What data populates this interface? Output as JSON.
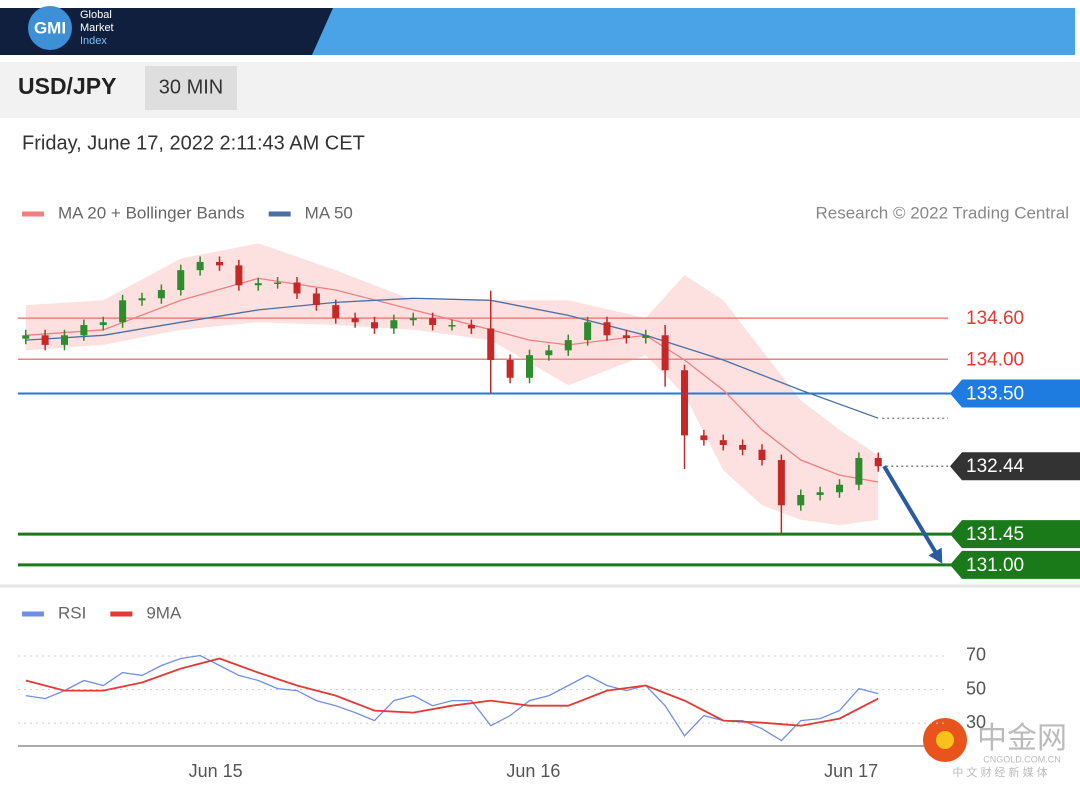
{
  "header": {
    "logo": "GMI",
    "brand_lines": [
      "Global",
      "Market",
      "Index"
    ],
    "symbol": "USD/JPY",
    "interval": "30 MIN",
    "timestamp": "Friday, June 17, 2022 2:11:43 AM CET",
    "credit": "Research © 2022 Trading Central"
  },
  "watermark": {
    "logo": "中金网",
    "url": "CNGOLD.COM.CN",
    "tagline": "中 文 财 经 新 媒 体"
  },
  "chart_data": [
    {
      "type": "candlestick",
      "x": [
        0,
        1,
        2,
        3,
        4,
        5,
        6,
        7,
        8,
        9,
        10,
        11,
        12,
        13,
        14,
        15,
        16,
        17,
        18,
        19,
        20,
        21,
        22,
        23,
        24,
        25,
        26,
        27,
        28,
        29,
        30,
        31,
        32,
        33,
        34,
        35,
        36,
        37,
        38,
        39,
        40,
        41,
        42,
        43,
        44
      ],
      "open": [
        134.3,
        134.35,
        134.21,
        134.35,
        134.5,
        134.54,
        134.86,
        134.89,
        135.01,
        135.3,
        135.42,
        135.37,
        135.08,
        135.11,
        135.12,
        134.96,
        134.79,
        134.6,
        134.54,
        134.45,
        134.57,
        134.6,
        134.5,
        134.5,
        134.45,
        133.99,
        133.73,
        134.06,
        134.13,
        134.28,
        134.54,
        134.35,
        134.31,
        134.35,
        133.84,
        132.89,
        132.82,
        132.75,
        132.68,
        132.53,
        131.87,
        132.02,
        132.06,
        132.17,
        132.56
      ],
      "high": [
        134.43,
        134.43,
        134.43,
        134.58,
        134.62,
        134.94,
        134.97,
        135.09,
        135.38,
        135.5,
        135.5,
        135.45,
        135.19,
        135.2,
        135.2,
        135.04,
        134.87,
        134.68,
        134.62,
        134.65,
        134.68,
        134.68,
        134.58,
        134.58,
        135.0,
        134.07,
        134.14,
        134.21,
        134.36,
        134.62,
        134.62,
        134.43,
        134.43,
        134.5,
        133.92,
        132.97,
        132.9,
        132.83,
        132.76,
        132.61,
        132.1,
        132.14,
        132.25,
        132.64,
        132.64
      ],
      "low": [
        134.22,
        134.13,
        134.13,
        134.27,
        134.42,
        134.46,
        134.78,
        134.81,
        134.93,
        135.22,
        135.29,
        135.0,
        135.0,
        135.03,
        134.88,
        134.71,
        134.52,
        134.46,
        134.37,
        134.37,
        134.49,
        134.42,
        134.42,
        134.37,
        133.5,
        133.65,
        133.65,
        133.98,
        134.05,
        134.2,
        134.27,
        134.23,
        134.23,
        133.6,
        132.4,
        132.74,
        132.67,
        132.6,
        132.45,
        131.45,
        131.79,
        131.94,
        131.98,
        132.09,
        132.36
      ],
      "close": [
        134.35,
        134.21,
        134.35,
        134.5,
        134.54,
        134.86,
        134.89,
        135.01,
        135.3,
        135.42,
        135.37,
        135.08,
        135.11,
        135.12,
        134.96,
        134.79,
        134.6,
        134.54,
        134.45,
        134.57,
        134.6,
        134.5,
        134.5,
        134.45,
        133.99,
        133.73,
        134.06,
        134.13,
        134.28,
        134.54,
        134.35,
        134.31,
        134.35,
        133.84,
        132.89,
        132.82,
        132.75,
        132.68,
        132.53,
        131.87,
        132.02,
        132.06,
        132.17,
        132.56,
        132.44
      ],
      "up_color": "#2e8b2e",
      "down_color": "#c62828",
      "xlim": [
        -0.4,
        47.6
      ],
      "ylim": [
        130.78,
        135.74
      ],
      "bands": {
        "name": "MA 20 + Bollinger Bands",
        "color": "#f4a0a0",
        "fill": "#fde0e0",
        "x": [
          0,
          4,
          8,
          12,
          16,
          20,
          24,
          28,
          32,
          34,
          36,
          38,
          40,
          42,
          44
        ],
        "upper": [
          134.79,
          134.86,
          135.47,
          135.69,
          135.3,
          134.86,
          134.86,
          134.86,
          134.6,
          135.23,
          134.86,
          134.13,
          133.4,
          132.97,
          132.6
        ],
        "lower": [
          134.13,
          134.21,
          134.43,
          134.54,
          134.5,
          134.43,
          134.28,
          133.62,
          134.06,
          133.48,
          132.38,
          131.87,
          131.66,
          131.58,
          131.66
        ]
      },
      "series": [
        {
          "name": "MA 20 + Bollinger Bands",
          "color": "#f08080",
          "x": [
            0,
            4,
            8,
            12,
            16,
            20,
            24,
            26,
            28,
            32,
            34,
            36,
            38,
            40,
            42,
            44
          ],
          "values": [
            134.35,
            134.43,
            134.86,
            135.18,
            135.01,
            134.72,
            134.43,
            134.28,
            134.21,
            134.35,
            133.99,
            133.55,
            132.97,
            132.53,
            132.31,
            132.21
          ]
        },
        {
          "name": "MA 50",
          "color": "#4a6fa5",
          "x": [
            0,
            4,
            8,
            12,
            16,
            20,
            24,
            28,
            32,
            36,
            40,
            44
          ],
          "values": [
            134.28,
            134.35,
            134.54,
            134.72,
            134.83,
            134.89,
            134.86,
            134.64,
            134.35,
            133.99,
            133.55,
            133.14
          ]
        }
      ],
      "levels": [
        {
          "value": 134.6,
          "label": "134.60",
          "color": "#f08080",
          "boxed": false
        },
        {
          "value": 134.0,
          "label": "134.00",
          "color": "#f08080",
          "boxed": false
        },
        {
          "value": 133.5,
          "label": "133.50",
          "color": "#1e7be0",
          "boxed": true
        },
        {
          "value": 132.44,
          "label": "132.44",
          "color": "#333333",
          "boxed": true,
          "dotted": true
        },
        {
          "value": 131.45,
          "label": "131.45",
          "color": "#1a7a1a",
          "boxed": true
        },
        {
          "value": 131.0,
          "label": "131.00",
          "color": "#1a7a1a",
          "boxed": true
        }
      ],
      "forecast": {
        "color": "#2a5aa0",
        "x": [
          44.3,
          47.2
        ],
        "values": [
          132.44,
          131.07
        ]
      }
    },
    {
      "type": "line",
      "xlim": [
        -0.4,
        47.6
      ],
      "ylim": [
        17,
        79.5
      ],
      "yticks": [
        30,
        50,
        70
      ],
      "xticks": [
        {
          "value": 9.8,
          "label": "Jun 15"
        },
        {
          "value": 26.2,
          "label": "Jun 16"
        },
        {
          "value": 42.6,
          "label": "Jun 17"
        }
      ],
      "series": [
        {
          "name": "RSI",
          "color": "#6f8fe6",
          "x": [
            0,
            1,
            2,
            3,
            4,
            5,
            6,
            7,
            8,
            9,
            10,
            11,
            12,
            13,
            14,
            15,
            16,
            17,
            18,
            19,
            20,
            21,
            22,
            23,
            24,
            25,
            26,
            27,
            28,
            29,
            30,
            31,
            32,
            33,
            34,
            35,
            36,
            37,
            38,
            39,
            40,
            41,
            42,
            43,
            44
          ],
          "values": [
            46.4,
            44.6,
            49.4,
            55.4,
            52.4,
            60.1,
            58.4,
            64.3,
            68.5,
            70.3,
            64.3,
            58.4,
            55.4,
            50.6,
            49.4,
            43.4,
            40.4,
            36.3,
            31.5,
            43.4,
            46.4,
            40.4,
            43.4,
            43.4,
            28.5,
            34.5,
            43.4,
            46.4,
            52.4,
            58.4,
            52.4,
            49.4,
            52.4,
            40.4,
            22.5,
            34.5,
            31.5,
            31.5,
            26.7,
            19.6,
            31.5,
            32.7,
            37.5,
            50.6,
            47.6
          ]
        },
        {
          "name": "9MA",
          "color": "#e53935",
          "x": [
            0,
            2,
            4,
            6,
            8,
            10,
            12,
            14,
            16,
            18,
            20,
            22,
            24,
            26,
            28,
            30,
            32,
            34,
            36,
            38,
            40,
            42,
            44
          ],
          "values": [
            55.4,
            49.4,
            49.4,
            54.2,
            62.5,
            68.5,
            60.1,
            52.4,
            46.4,
            37.5,
            36.3,
            40.4,
            43.4,
            40.4,
            40.4,
            49.4,
            52.4,
            43.4,
            31.5,
            30.3,
            28.5,
            32.7,
            44.6
          ]
        }
      ]
    }
  ]
}
